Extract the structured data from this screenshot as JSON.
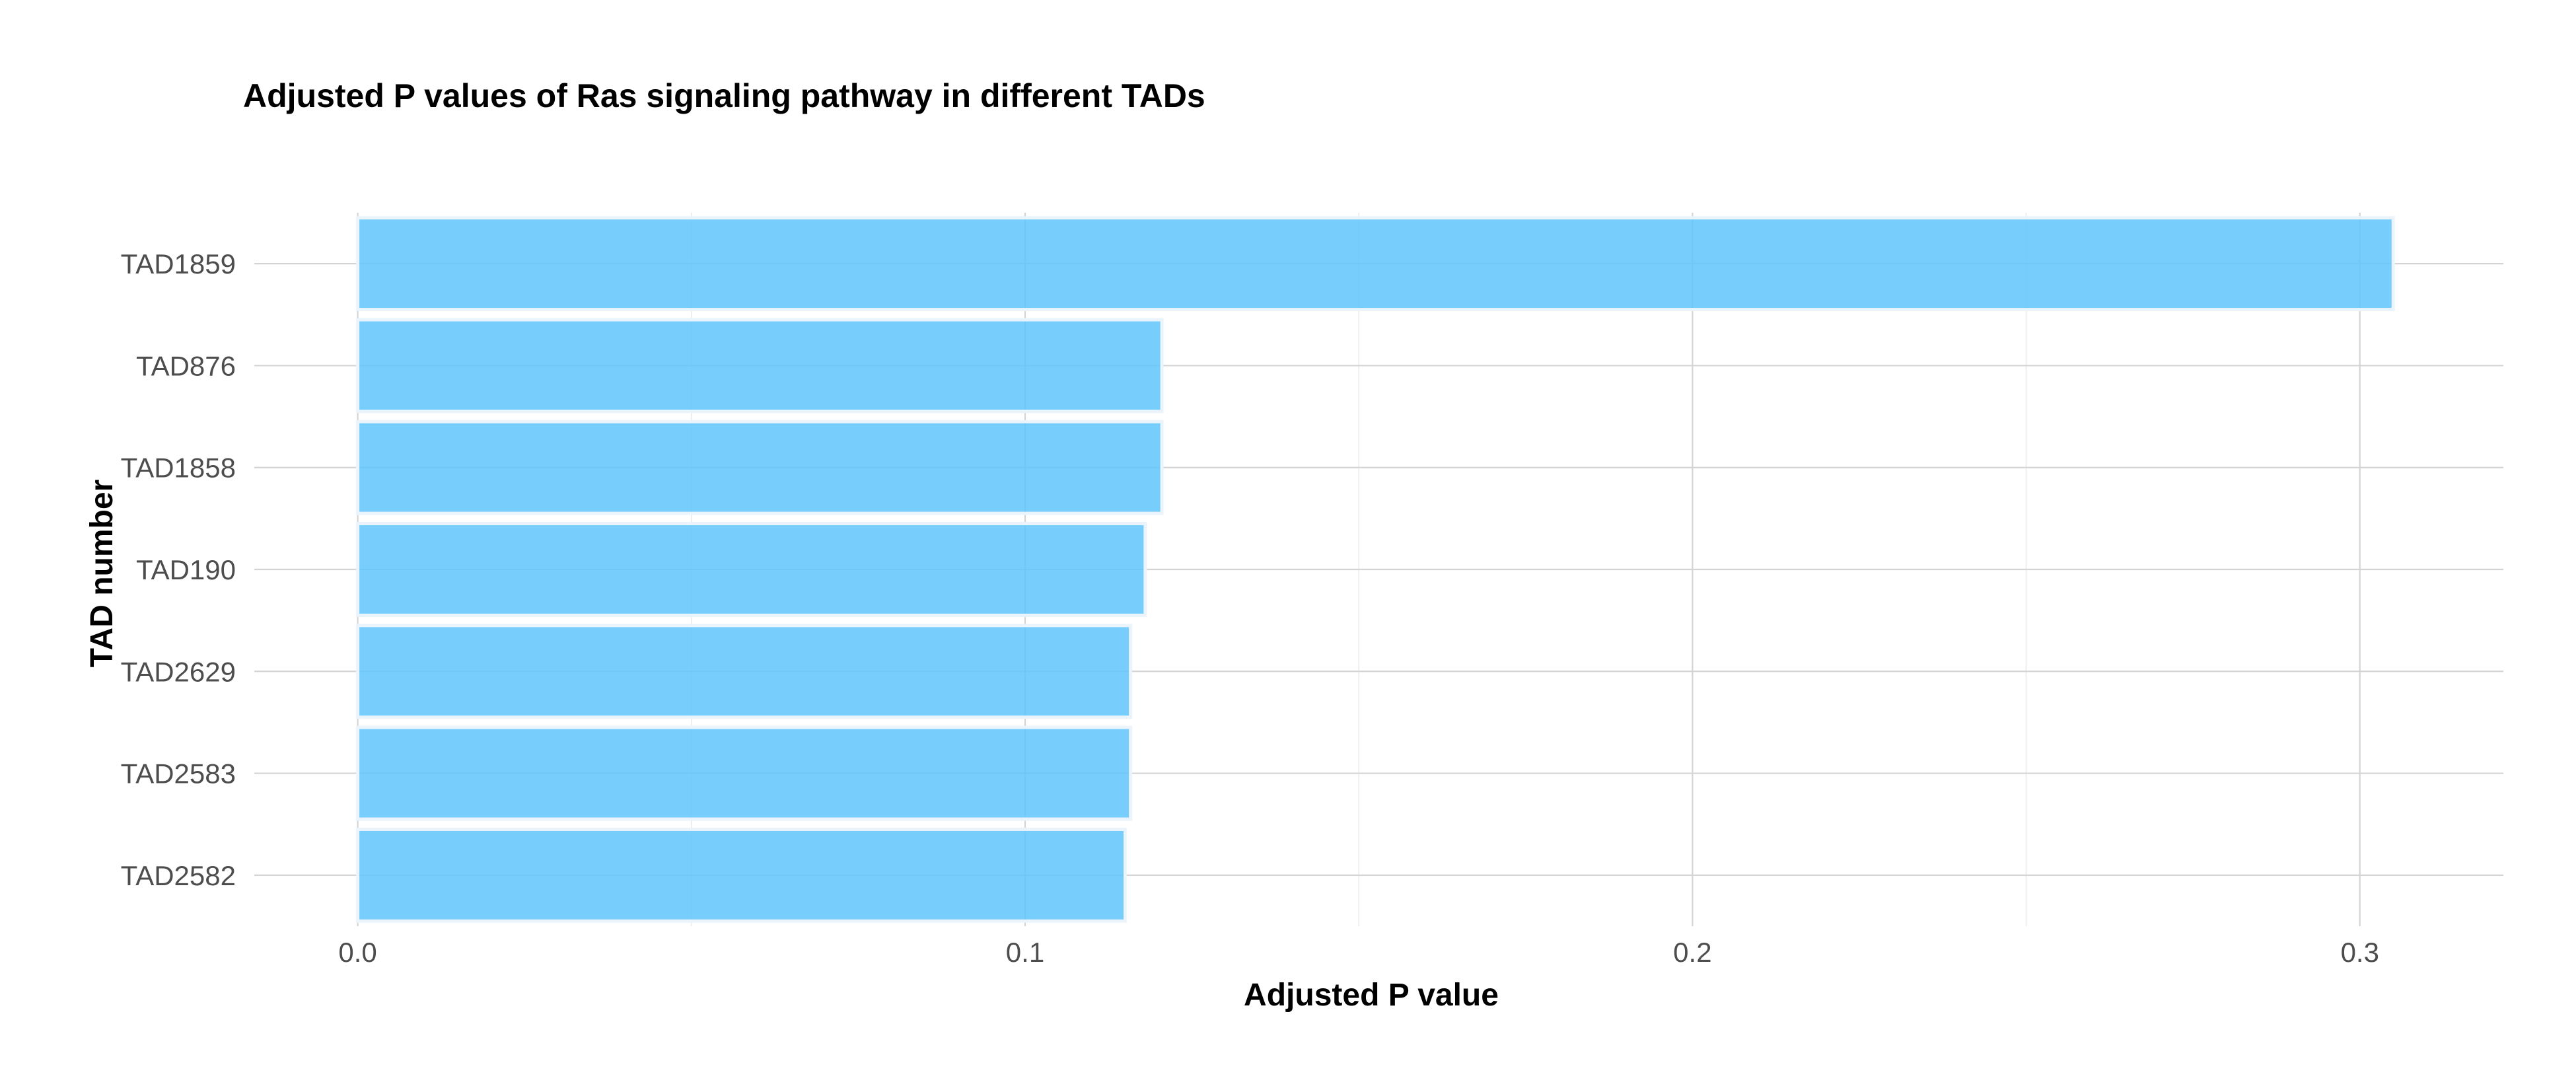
{
  "chart_data": {
    "type": "bar",
    "orientation": "horizontal",
    "title": "Adjusted P values of Ras signaling pathway in different TADs",
    "xlabel": "Adjusted P value",
    "ylabel": "TAD number",
    "categories": [
      "TAD1859",
      "TAD876",
      "TAD1858",
      "TAD190",
      "TAD2629",
      "TAD2583",
      "TAD2582"
    ],
    "values": [
      0.305,
      0.1205,
      0.1205,
      0.118,
      0.1158,
      0.1158,
      0.115
    ],
    "xlim": [
      -0.0155,
      0.3215
    ],
    "x_ticks": [
      0.0,
      0.1,
      0.2,
      0.3
    ],
    "x_tick_labels": [
      "0.0",
      "0.1",
      "0.2",
      "0.3"
    ],
    "x_minor_ticks": [
      0.05,
      0.15,
      0.25
    ],
    "grid": true,
    "bar_color": "#5fc6fb",
    "bar_opacity": 0.85,
    "bar_outline_color": "#ebf3fb",
    "grid_major_color": "#d4d4d4",
    "grid_minor_color": "#ebebeb",
    "tick_label_color": "#4d4d4d"
  }
}
